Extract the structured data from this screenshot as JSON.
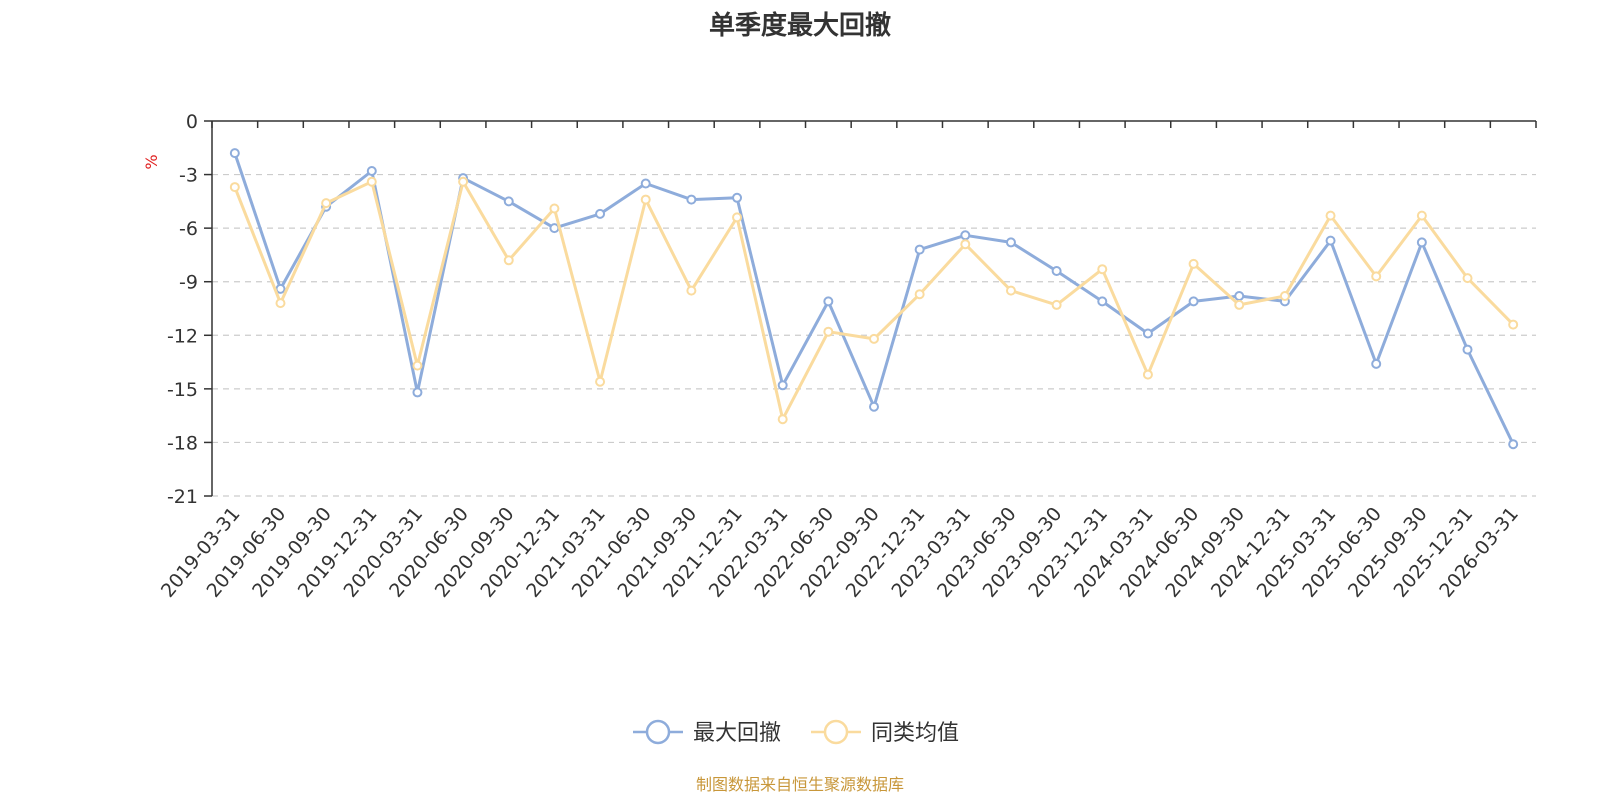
{
  "chart_data": {
    "type": "line",
    "title": "单季度最大回撤",
    "ylabel": "%",
    "ylim": [
      -21,
      0
    ],
    "yticks": [
      0,
      -3,
      -6,
      -9,
      -12,
      -15,
      -18,
      -21
    ],
    "grid": true,
    "legend_position": "bottom",
    "categories": [
      "2019-03-31",
      "2019-06-30",
      "2019-09-30",
      "2019-12-31",
      "2020-03-31",
      "2020-06-30",
      "2020-09-30",
      "2020-12-31",
      "2021-03-31",
      "2021-06-30",
      "2021-09-30",
      "2021-12-31",
      "2022-03-31",
      "2022-06-30",
      "2022-09-30",
      "2022-12-31",
      "2023-03-31",
      "2023-06-30",
      "2023-09-30",
      "2023-12-31",
      "2024-03-31",
      "2024-06-30",
      "2024-09-30",
      "2024-12-31",
      "2025-03-31",
      "2025-06-30",
      "2025-09-30",
      "2025-12-31",
      "2026-03-31"
    ],
    "series": [
      {
        "name": "最大回撤",
        "color": "#8eacdb",
        "values": [
          -1.8,
          -9.4,
          -4.8,
          -2.8,
          -15.2,
          -3.2,
          -4.5,
          -6.0,
          -5.2,
          -3.5,
          -4.4,
          -4.3,
          -14.8,
          -10.1,
          -16.0,
          -7.2,
          -6.4,
          -6.8,
          -8.4,
          -10.1,
          -11.9,
          -10.1,
          -9.8,
          -10.1,
          -6.7,
          -13.6,
          -6.8,
          -12.8,
          -18.1
        ]
      },
      {
        "name": "同类均值",
        "color": "#fadb9e",
        "values": [
          -3.7,
          -10.2,
          -4.6,
          -3.4,
          -13.7,
          -3.4,
          -7.8,
          -4.9,
          -14.6,
          -4.4,
          -9.5,
          -5.4,
          -16.7,
          -11.8,
          -12.2,
          -9.7,
          -6.9,
          -9.5,
          -10.3,
          -8.3,
          -14.2,
          -8.0,
          -10.3,
          -9.8,
          -5.3,
          -8.7,
          -5.3,
          -8.8,
          -11.4
        ]
      }
    ],
    "source": "制图数据来自恒生聚源数据库",
    "colors": {
      "axis": "#333333",
      "grid": "#cccccc",
      "unit": "#e02020",
      "source": "#c8973a"
    }
  }
}
